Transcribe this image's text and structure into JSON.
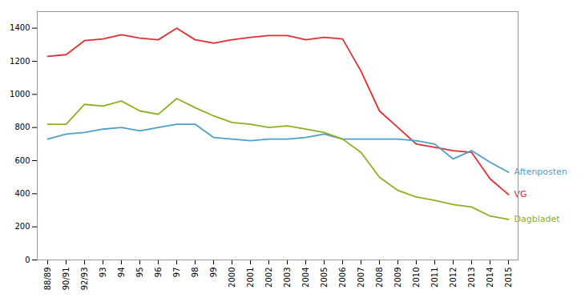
{
  "chart_data": {
    "type": "line",
    "categories": [
      "88/89",
      "90/91",
      "92/93",
      "93",
      "94",
      "95",
      "96",
      "97",
      "98",
      "99",
      "2000",
      "2001",
      "2002",
      "2003",
      "2004",
      "2005",
      "2006",
      "2007",
      "2008",
      "2009",
      "2010",
      "2011",
      "2012",
      "2013",
      "2014",
      "2015"
    ],
    "series": [
      {
        "name": "VG",
        "color": "#e03030",
        "values": [
          1230,
          1240,
          1325,
          1335,
          1360,
          1340,
          1330,
          1400,
          1330,
          1310,
          1330,
          1345,
          1355,
          1355,
          1330,
          1345,
          1335,
          1140,
          900,
          800,
          700,
          680,
          660,
          650,
          490,
          395
        ]
      },
      {
        "name": "Aftenposten",
        "color": "#4ea0c8",
        "values": [
          730,
          760,
          770,
          790,
          800,
          780,
          800,
          820,
          820,
          740,
          730,
          720,
          730,
          730,
          740,
          760,
          730,
          730,
          730,
          730,
          720,
          700,
          610,
          660,
          590,
          530
        ]
      },
      {
        "name": "Dagbladet",
        "color": "#8db020",
        "values": [
          820,
          820,
          940,
          930,
          960,
          900,
          880,
          975,
          920,
          870,
          830,
          820,
          800,
          810,
          790,
          770,
          730,
          650,
          500,
          420,
          380,
          360,
          335,
          320,
          265,
          245
        ]
      }
    ],
    "ylim": [
      0,
      1500
    ],
    "yticks": [
      0,
      200,
      400,
      600,
      800,
      1000,
      1200,
      1400
    ],
    "grid": false
  }
}
